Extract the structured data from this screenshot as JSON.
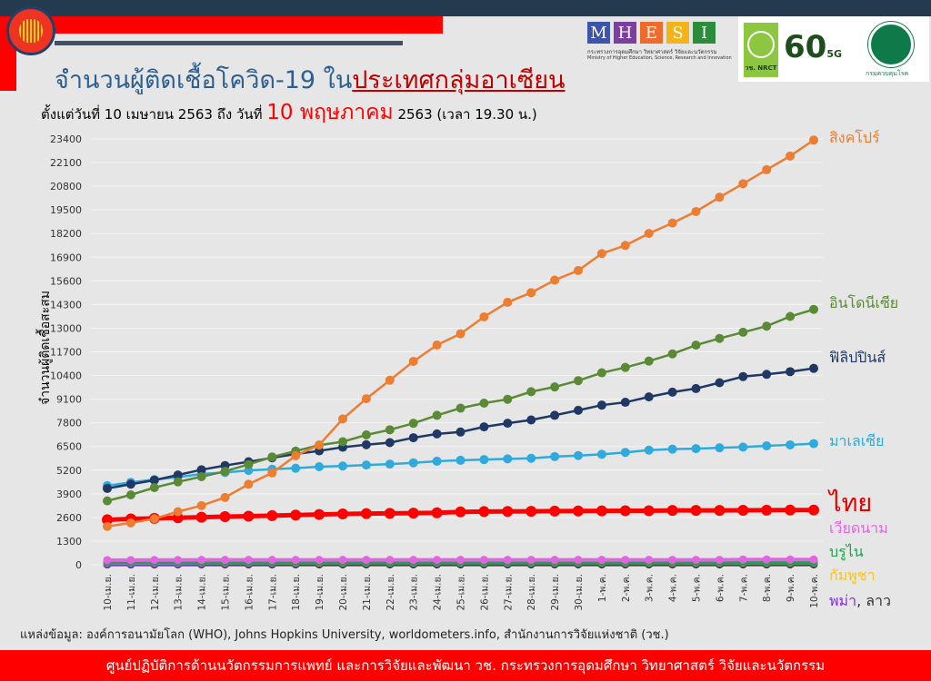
{
  "header": {
    "title_main": "จำนวนผู้ติดเชื้อโควิด-19 ใน",
    "title_highlight": "ประเทศกลุ่มอาเซียน",
    "subtitle_pre": "ตั้งแต่วันที่ 10 เมษายน 2563 ถึง วันที่ ",
    "subtitle_date": "10 พฤษภาคม",
    "subtitle_post": " 2563 (เวลา 19.30 น.)",
    "asean_logo": "ASEAN",
    "mhesi_letters": [
      "M",
      "H",
      "E",
      "S",
      "I"
    ],
    "mhesi_colors": [
      "#3d54a8",
      "#7b3fa0",
      "#ef6b2d",
      "#f5b31b",
      "#2d8c3c"
    ],
    "mhesi_th": "กระทรวงการอุดมศึกษา วิทยาศาสตร์ วิจัยและนวัตกรรม",
    "mhesi_en": "Ministry of Higher Education, Science, Research and Innovation",
    "nrct_label": "วช. NRCT",
    "sixty_label": "60",
    "fiveg_label": "5G",
    "moph_label": "กรมควบคุมโรค"
  },
  "chart_data": {
    "type": "line",
    "title": "จำนวนผู้ติดเชื้อโควิด-19 ในประเทศกลุ่มอาเซียน",
    "xlabel": "",
    "ylabel": "จำนวนผู้ติดเชื้อสะสม",
    "ylim": [
      0,
      23400
    ],
    "yticks": [
      0,
      1300,
      2600,
      3900,
      5200,
      6500,
      7800,
      9100,
      10400,
      11700,
      13000,
      14300,
      15600,
      16900,
      18200,
      19500,
      20800,
      22100,
      23400
    ],
    "grid": true,
    "legend": "right",
    "categories": [
      "10-เม.ย.",
      "11-เม.ย.",
      "12-เม.ย.",
      "13-เม.ย.",
      "14-เม.ย.",
      "15-เม.ย.",
      "16-เม.ย.",
      "17-เม.ย.",
      "18-เม.ย.",
      "19-เม.ย.",
      "20-เม.ย.",
      "21-เม.ย.",
      "22-เม.ย.",
      "23-เม.ย.",
      "24-เม.ย.",
      "25-เม.ย.",
      "26-เม.ย.",
      "27-เม.ย.",
      "28-เม.ย.",
      "29-เม.ย.",
      "30-เม.ย.",
      "1-พ.ค.",
      "2-พ.ค.",
      "3-พ.ค.",
      "4-พ.ค.",
      "5-พ.ค.",
      "6-พ.ค.",
      "7-พ.ค.",
      "8-พ.ค.",
      "9-พ.ค.",
      "10-พ.ค."
    ],
    "series": [
      {
        "name": "สิงคโปร์",
        "color": "#ed7d31",
        "values": [
          2108,
          2299,
          2532,
          2918,
          3252,
          3699,
          4427,
          5050,
          5992,
          6588,
          8014,
          9125,
          10141,
          11178,
          12075,
          12693,
          13624,
          14423,
          14951,
          15641,
          16169,
          17101,
          17548,
          18205,
          18778,
          19410,
          20198,
          20939,
          21707,
          22460,
          23336
        ]
      },
      {
        "name": "อินโดนีเซีย",
        "color": "#5b8a36",
        "values": [
          3512,
          3842,
          4241,
          4557,
          4839,
          5136,
          5516,
          5923,
          6248,
          6575,
          6760,
          7135,
          7418,
          7775,
          8211,
          8607,
          8882,
          9096,
          9511,
          9771,
          10118,
          10551,
          10843,
          11192,
          11587,
          12071,
          12438,
          12776,
          13112,
          13645,
          14032
        ]
      },
      {
        "name": "ฟิลิปปินส์",
        "color": "#203864",
        "values": [
          4195,
          4428,
          4648,
          4932,
          5223,
          5453,
          5660,
          5878,
          6087,
          6259,
          6459,
          6599,
          6710,
          6981,
          7192,
          7294,
          7579,
          7777,
          7958,
          8212,
          8488,
          8772,
          8928,
          9223,
          9485,
          9684,
          10004,
          10343,
          10463,
          10610,
          10794
        ]
      },
      {
        "name": "มาเลเซีย",
        "color": "#2eaadc",
        "values": [
          4346,
          4530,
          4683,
          4817,
          4987,
          5072,
          5182,
          5251,
          5305,
          5389,
          5425,
          5482,
          5532,
          5603,
          5691,
          5742,
          5780,
          5820,
          5851,
          5945,
          6002,
          6071,
          6176,
          6298,
          6353,
          6383,
          6428,
          6467,
          6535,
          6589,
          6656
        ]
      },
      {
        "name": "ไทย",
        "color": "#ff0000",
        "values": [
          2473,
          2518,
          2551,
          2579,
          2613,
          2643,
          2672,
          2700,
          2733,
          2765,
          2792,
          2811,
          2826,
          2839,
          2854,
          2907,
          2922,
          2931,
          2938,
          2947,
          2954,
          2960,
          2966,
          2969,
          2987,
          2988,
          2989,
          2992,
          3000,
          3004,
          3009
        ]
      },
      {
        "name": "เวียดนาม",
        "color": "#e066e0",
        "values": [
          257,
          258,
          262,
          265,
          266,
          267,
          268,
          268,
          268,
          268,
          268,
          268,
          268,
          268,
          268,
          270,
          270,
          270,
          270,
          270,
          270,
          270,
          271,
          271,
          271,
          271,
          271,
          288,
          288,
          288,
          288
        ]
      },
      {
        "name": "บรูไน",
        "color": "#22a050",
        "values": [
          135,
          135,
          136,
          136,
          136,
          136,
          136,
          136,
          138,
          138,
          138,
          138,
          138,
          138,
          138,
          138,
          138,
          138,
          138,
          138,
          138,
          138,
          138,
          138,
          138,
          141,
          141,
          141,
          141,
          141,
          141
        ]
      },
      {
        "name": "กัมพูชา",
        "color": "#f5c518",
        "values": [
          119,
          120,
          120,
          121,
          122,
          122,
          122,
          122,
          122,
          122,
          122,
          122,
          122,
          122,
          122,
          122,
          122,
          122,
          122,
          122,
          122,
          122,
          122,
          122,
          122,
          122,
          122,
          122,
          122,
          122,
          122
        ]
      },
      {
        "name": "พม่า",
        "color": "#7b2fd0",
        "values": [
          27,
          28,
          39,
          41,
          62,
          74,
          85,
          88,
          98,
          111,
          111,
          119,
          121,
          127,
          144,
          145,
          146,
          146,
          146,
          150,
          151,
          151,
          155,
          161,
          161,
          161,
          161,
          176,
          177,
          178,
          180
        ]
      },
      {
        "name": "ลาว",
        "color": "#444444",
        "values": [
          16,
          16,
          16,
          19,
          19,
          19,
          19,
          19,
          19,
          19,
          19,
          19,
          19,
          19,
          19,
          19,
          19,
          19,
          19,
          19,
          19,
          19,
          19,
          19,
          19,
          19,
          19,
          19,
          19,
          19,
          19
        ]
      }
    ],
    "legend_labels": {
      "singapore": "สิงคโปร์",
      "indonesia": "อินโดนีเซีย",
      "philippines": "ฟิลิปปินส์",
      "malaysia": "มาเลเซีย",
      "thailand": "ไทย",
      "vietnam": "เวียดนาม",
      "brunei": "บรูไน",
      "cambodia": "กัมพูชา",
      "myanmar": "พม่า",
      "laos": ", ลาว"
    }
  },
  "source": "แหล่งข้อมูล: องค์การอนามัยโลก (WHO), Johns Hopkins University, worldometers.info, สำนักงานการวิจัยแห่งชาติ (วช.)",
  "footer": "ศูนย์ปฏิบัติการด้านนวัตกรรมการแพทย์ และการวิจัยและพัฒนา  วช.   กระทรวงการอุดมศึกษา วิทยาศาสตร์ วิจัยและนวัตกรรม"
}
